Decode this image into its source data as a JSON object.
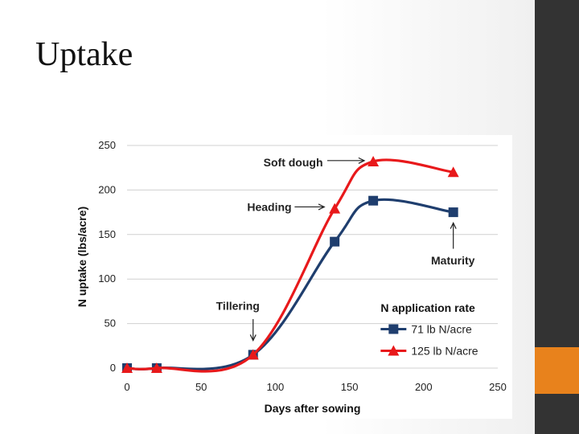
{
  "slide": {
    "title": "Uptake",
    "colors": {
      "sidebar": "#333333",
      "accent": "#e8821c"
    }
  },
  "chart_data": {
    "type": "line",
    "xlabel": "Days after sowing",
    "ylabel": "N uptake (lbs/acre)",
    "xlim": [
      0,
      250
    ],
    "ylim": [
      0,
      250
    ],
    "xticks": [
      0,
      50,
      100,
      150,
      200,
      250
    ],
    "yticks": [
      0,
      50,
      100,
      150,
      200,
      250
    ],
    "grid": "horizontal",
    "legend": {
      "title": "N application rate",
      "placement": "bottom-right"
    },
    "series": [
      {
        "name": "71 lb N/acre",
        "color": "#1f3e6e",
        "marker": "square",
        "x": [
          0,
          20,
          85,
          140,
          166,
          220
        ],
        "y": [
          0,
          0,
          15,
          142,
          188,
          175
        ]
      },
      {
        "name": "125 lb N/acre",
        "color": "#e8191b",
        "marker": "triangle",
        "x": [
          0,
          20,
          85,
          140,
          166,
          220
        ],
        "y": [
          0,
          0,
          15,
          179,
          232,
          220
        ]
      }
    ],
    "annotations": [
      {
        "text": "Soft dough",
        "x": 163,
        "y": 232
      },
      {
        "text": "Heading",
        "x": 137,
        "y": 181
      },
      {
        "text": "Tillering",
        "x": 85,
        "y": 31
      },
      {
        "text": "Maturity",
        "x": 220,
        "y": 163
      }
    ]
  }
}
